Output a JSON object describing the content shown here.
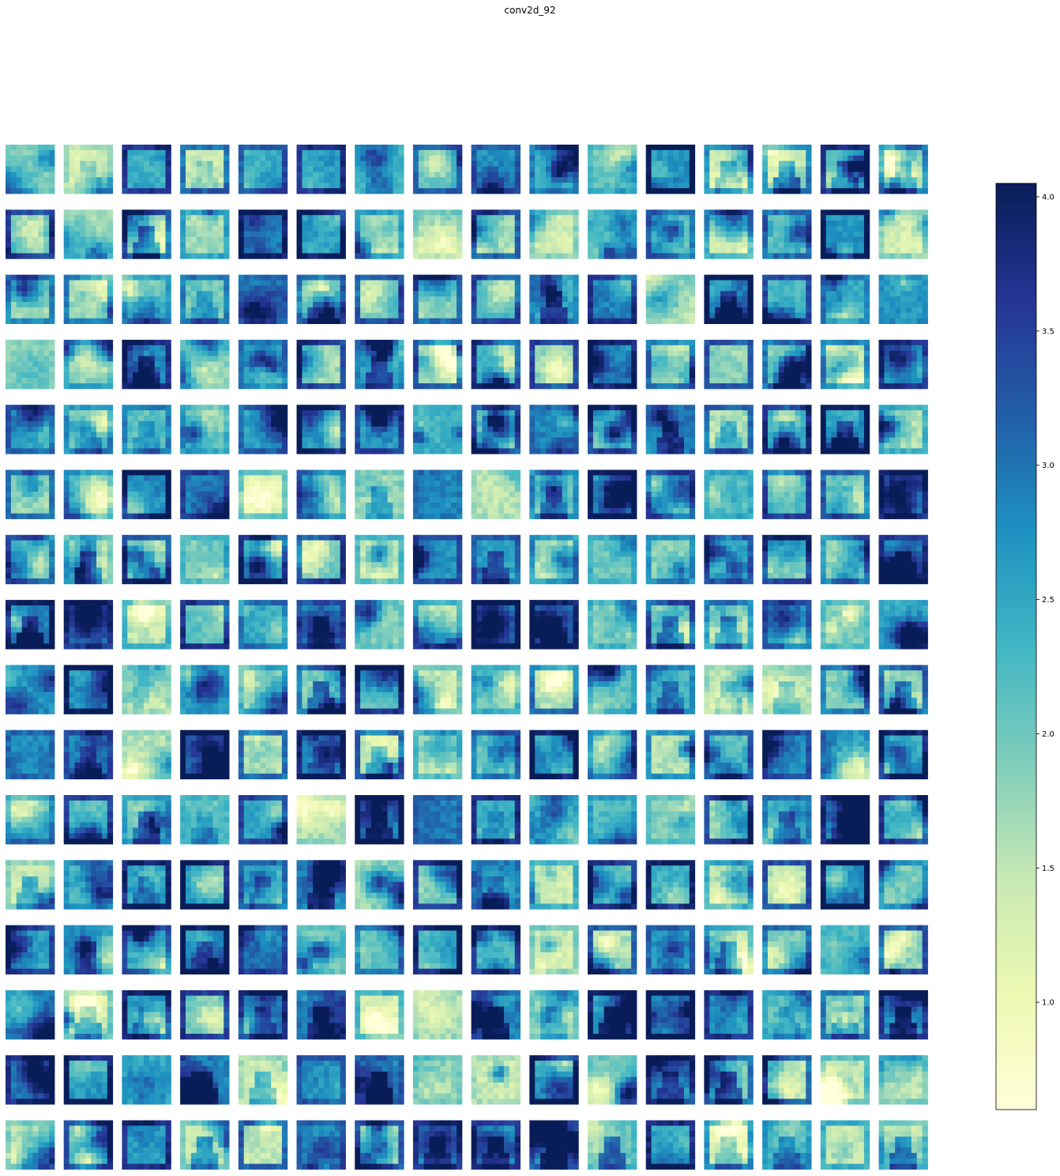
{
  "figure": {
    "title": "conv2d_92"
  },
  "chart_data": {
    "type": "heatmap",
    "title": "conv2d_92",
    "layout": "grid of feature maps",
    "rows": 16,
    "cols": 16,
    "n_feature_maps": 256,
    "colormap": "YlGnBu",
    "axes_visible": false,
    "colorbar": {
      "placement": "right",
      "vmin": 0.6,
      "vmax": 4.05,
      "ticks": [
        1.0,
        1.5,
        2.0,
        2.5,
        3.0,
        3.5,
        4.0
      ],
      "tick_labels": [
        "1.0",
        "1.5",
        "2.0",
        "2.5",
        "3.0",
        "3.5",
        "4.0"
      ]
    },
    "colors": [
      "#ffffd9",
      "#edf8b1",
      "#c7e9b4",
      "#7fcdbb",
      "#41b6c4",
      "#1d91c0",
      "#225ea8",
      "#253494",
      "#081d58"
    ]
  }
}
